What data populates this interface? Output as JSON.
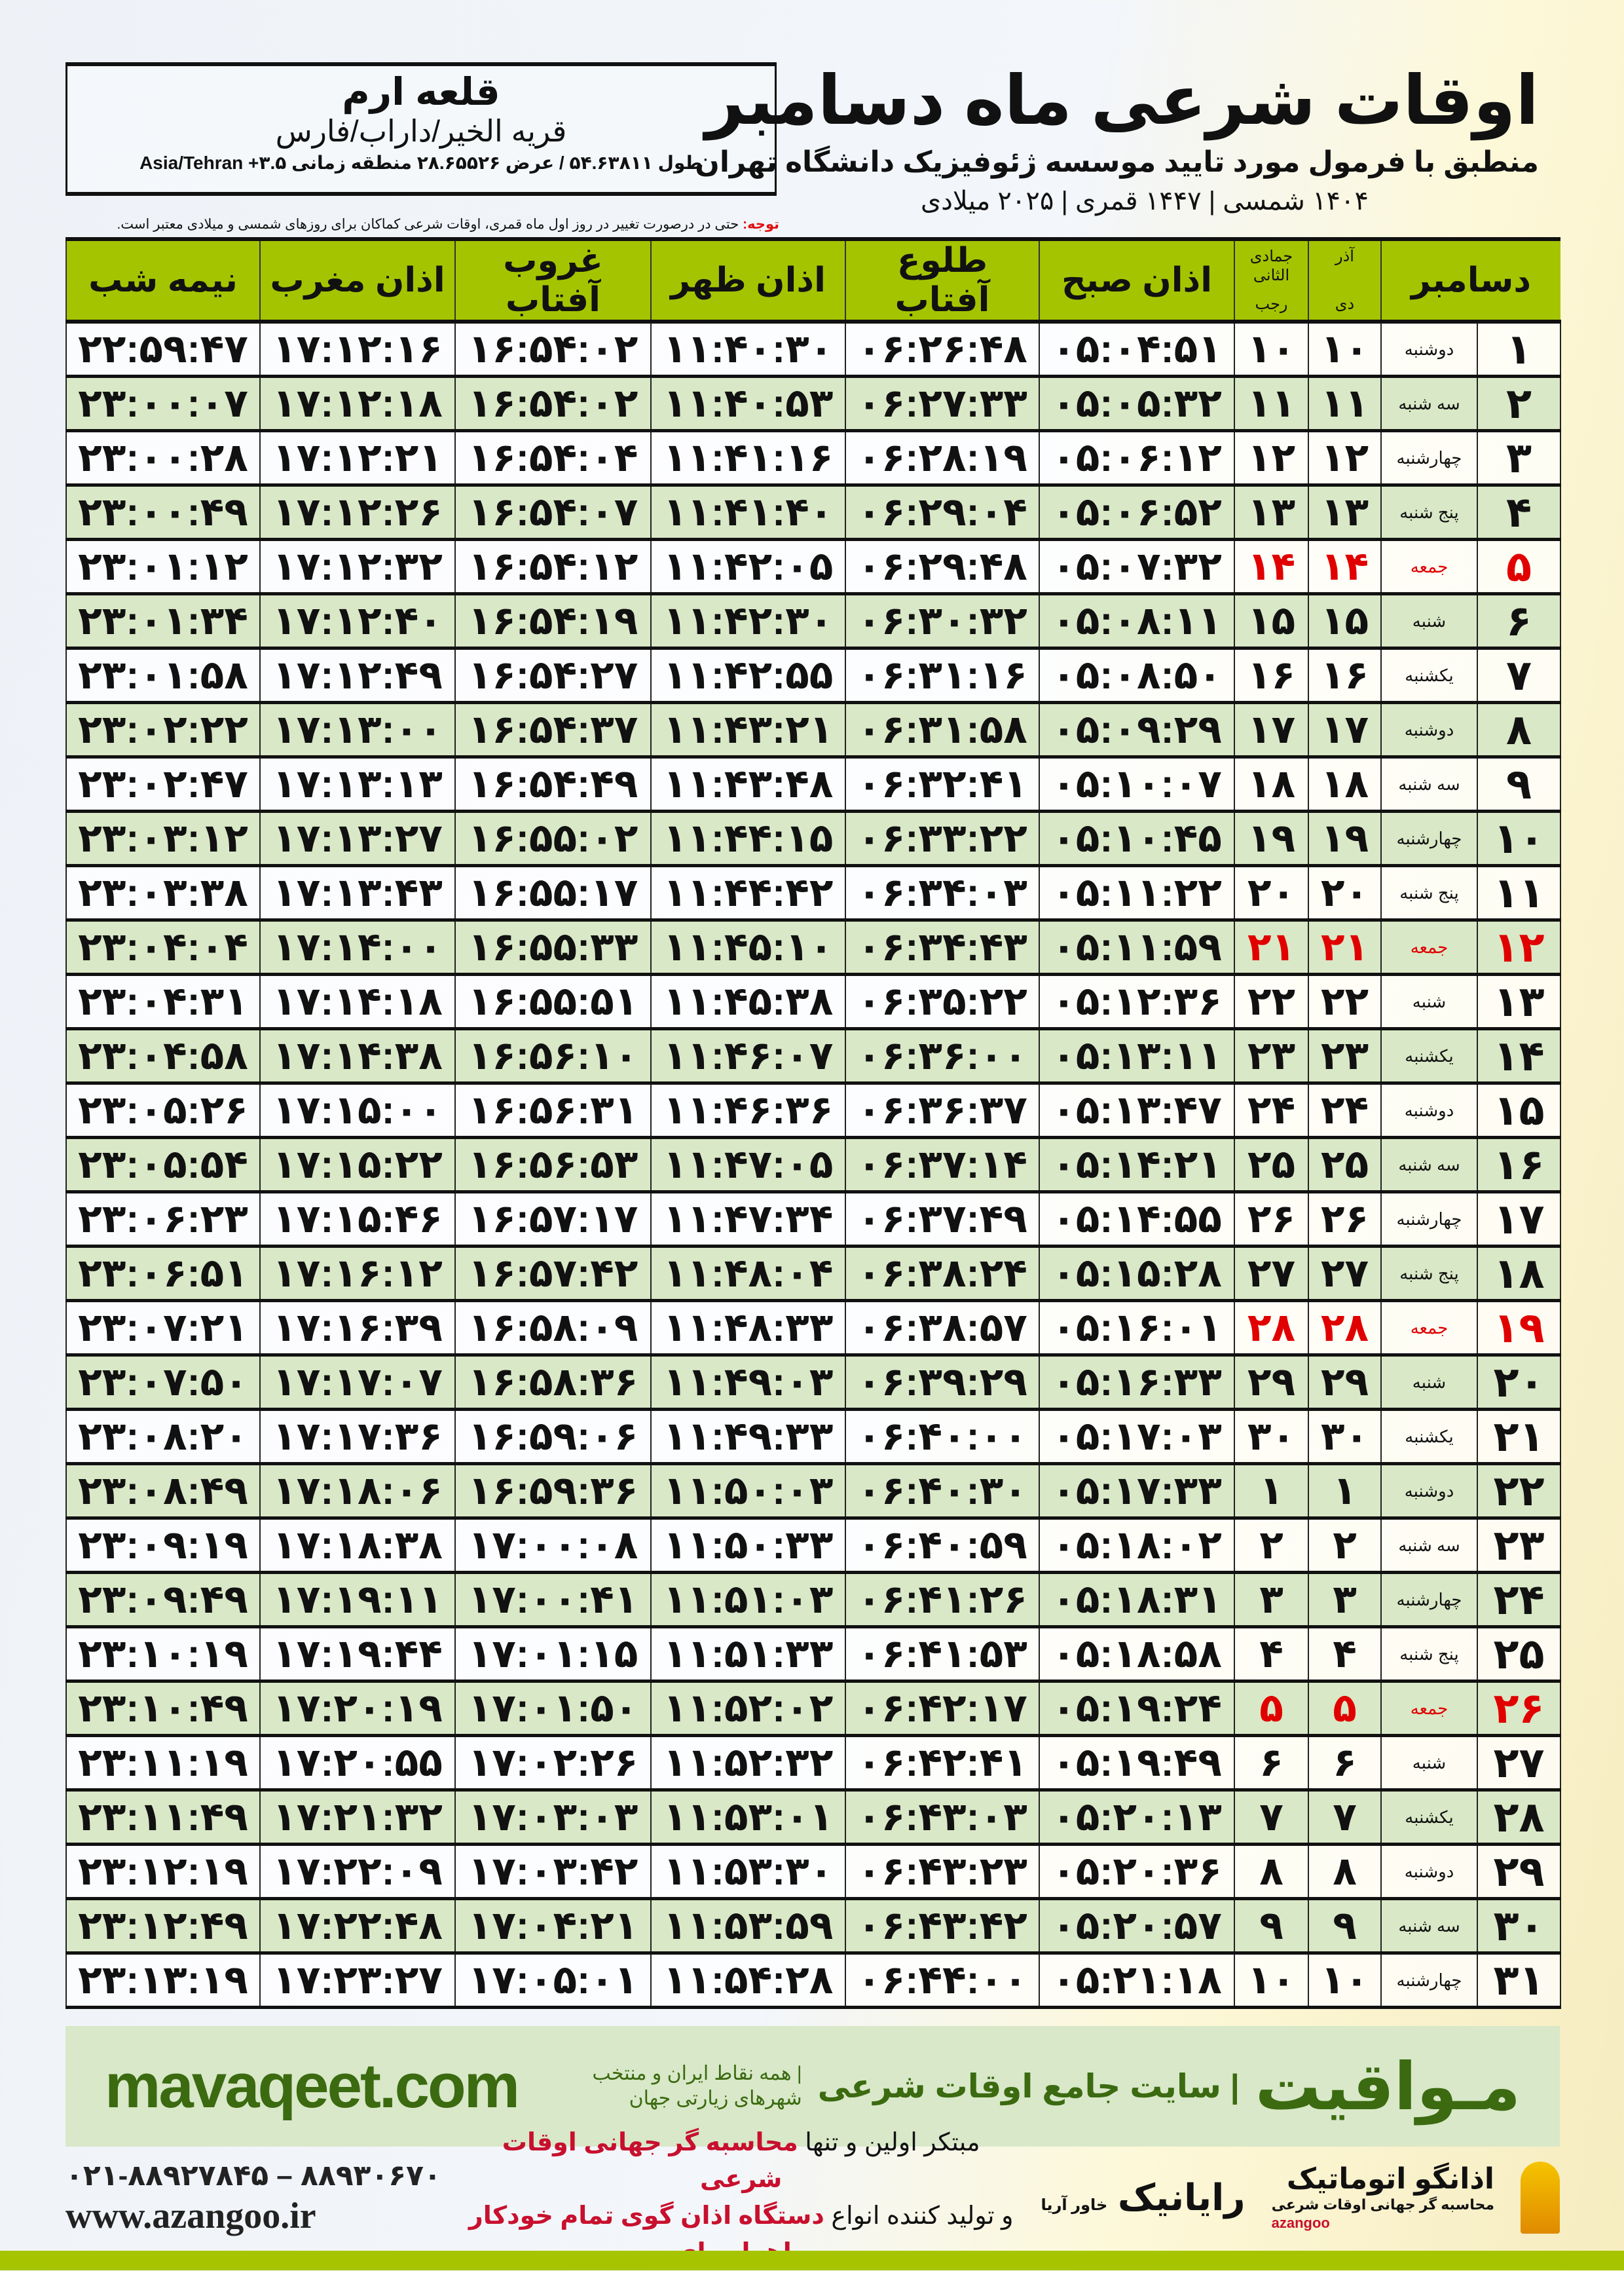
{
  "location": {
    "name": "قلعه ارم",
    "region": "قریه الخیر/داراب/فارس",
    "coords": "طول ۵۴.۶۳۸۱۱ / عرض ۲۸.۶۵۵۲۶ منطقه زمانی ۳.۵+ Asia/Tehran"
  },
  "header": {
    "title": "اوقات شرعی ماه دسامبر",
    "subtitle": "منطبق با فرمول مورد تایید موسسه ژئوفیزیک دانشگاه تهران",
    "years": "۱۴۰۴ شمسی | ۱۴۴۷ قمری | ۲۰۲۵ میلادی"
  },
  "note": {
    "label": "توجه:",
    "text": " حتی در درصورت تغییر در روز اول ماه قمری، اوقات شرعی کماکان برای روزهای شمسی و میلادی معتبر است."
  },
  "colors": {
    "header_green": "#a5c400",
    "row_green": "#d9e8c6",
    "holiday_red": "#e00000",
    "brand_green": "#3b6a10"
  },
  "table": {
    "columns": {
      "month": "دسامبر",
      "shamsi_top": "آذر",
      "shamsi_bottom": "دی",
      "hijri_top": "جمادی الثانی",
      "hijri_bottom": "رجب",
      "fajr": "اذان صبح",
      "sunrise": "طلوع آفتاب",
      "dhuhr": "اذان ظهر",
      "sunset": "غروب آفتاب",
      "maghrib": "اذان مغرب",
      "midnight": "نیمه شب"
    },
    "rows": [
      [
        "۱",
        "دوشنبه",
        "۱۰",
        "۱۰",
        "۰۵:۰۴:۵۱",
        "۰۶:۲۶:۴۸",
        "۱۱:۴۰:۳۰",
        "۱۶:۵۴:۰۲",
        "۱۷:۱۲:۱۶",
        "۲۲:۵۹:۴۷",
        false
      ],
      [
        "۲",
        "سه شنبه",
        "۱۱",
        "۱۱",
        "۰۵:۰۵:۳۲",
        "۰۶:۲۷:۳۳",
        "۱۱:۴۰:۵۳",
        "۱۶:۵۴:۰۲",
        "۱۷:۱۲:۱۸",
        "۲۳:۰۰:۰۷",
        false
      ],
      [
        "۳",
        "چهارشنبه",
        "۱۲",
        "۱۲",
        "۰۵:۰۶:۱۲",
        "۰۶:۲۸:۱۹",
        "۱۱:۴۱:۱۶",
        "۱۶:۵۴:۰۴",
        "۱۷:۱۲:۲۱",
        "۲۳:۰۰:۲۸",
        false
      ],
      [
        "۴",
        "پنج شنبه",
        "۱۳",
        "۱۳",
        "۰۵:۰۶:۵۲",
        "۰۶:۲۹:۰۴",
        "۱۱:۴۱:۴۰",
        "۱۶:۵۴:۰۷",
        "۱۷:۱۲:۲۶",
        "۲۳:۰۰:۴۹",
        false
      ],
      [
        "۵",
        "جمعه",
        "۱۴",
        "۱۴",
        "۰۵:۰۷:۳۲",
        "۰۶:۲۹:۴۸",
        "۱۱:۴۲:۰۵",
        "۱۶:۵۴:۱۲",
        "۱۷:۱۲:۳۲",
        "۲۳:۰۱:۱۲",
        true
      ],
      [
        "۶",
        "شنبه",
        "۱۵",
        "۱۵",
        "۰۵:۰۸:۱۱",
        "۰۶:۳۰:۳۲",
        "۱۱:۴۲:۳۰",
        "۱۶:۵۴:۱۹",
        "۱۷:۱۲:۴۰",
        "۲۳:۰۱:۳۴",
        false
      ],
      [
        "۷",
        "یکشنبه",
        "۱۶",
        "۱۶",
        "۰۵:۰۸:۵۰",
        "۰۶:۳۱:۱۶",
        "۱۱:۴۲:۵۵",
        "۱۶:۵۴:۲۷",
        "۱۷:۱۲:۴۹",
        "۲۳:۰۱:۵۸",
        false
      ],
      [
        "۸",
        "دوشنبه",
        "۱۷",
        "۱۷",
        "۰۵:۰۹:۲۹",
        "۰۶:۳۱:۵۸",
        "۱۱:۴۳:۲۱",
        "۱۶:۵۴:۳۷",
        "۱۷:۱۳:۰۰",
        "۲۳:۰۲:۲۲",
        false
      ],
      [
        "۹",
        "سه شنبه",
        "۱۸",
        "۱۸",
        "۰۵:۱۰:۰۷",
        "۰۶:۳۲:۴۱",
        "۱۱:۴۳:۴۸",
        "۱۶:۵۴:۴۹",
        "۱۷:۱۳:۱۳",
        "۲۳:۰۲:۴۷",
        false
      ],
      [
        "۱۰",
        "چهارشنبه",
        "۱۹",
        "۱۹",
        "۰۵:۱۰:۴۵",
        "۰۶:۳۳:۲۲",
        "۱۱:۴۴:۱۵",
        "۱۶:۵۵:۰۲",
        "۱۷:۱۳:۲۷",
        "۲۳:۰۳:۱۲",
        false
      ],
      [
        "۱۱",
        "پنج شنبه",
        "۲۰",
        "۲۰",
        "۰۵:۱۱:۲۲",
        "۰۶:۳۴:۰۳",
        "۱۱:۴۴:۴۲",
        "۱۶:۵۵:۱۷",
        "۱۷:۱۳:۴۳",
        "۲۳:۰۳:۳۸",
        false
      ],
      [
        "۱۲",
        "جمعه",
        "۲۱",
        "۲۱",
        "۰۵:۱۱:۵۹",
        "۰۶:۳۴:۴۳",
        "۱۱:۴۵:۱۰",
        "۱۶:۵۵:۳۳",
        "۱۷:۱۴:۰۰",
        "۲۳:۰۴:۰۴",
        true
      ],
      [
        "۱۳",
        "شنبه",
        "۲۲",
        "۲۲",
        "۰۵:۱۲:۳۶",
        "۰۶:۳۵:۲۲",
        "۱۱:۴۵:۳۸",
        "۱۶:۵۵:۵۱",
        "۱۷:۱۴:۱۸",
        "۲۳:۰۴:۳۱",
        false
      ],
      [
        "۱۴",
        "یکشنبه",
        "۲۳",
        "۲۳",
        "۰۵:۱۳:۱۱",
        "۰۶:۳۶:۰۰",
        "۱۱:۴۶:۰۷",
        "۱۶:۵۶:۱۰",
        "۱۷:۱۴:۳۸",
        "۲۳:۰۴:۵۸",
        false
      ],
      [
        "۱۵",
        "دوشنبه",
        "۲۴",
        "۲۴",
        "۰۵:۱۳:۴۷",
        "۰۶:۳۶:۳۷",
        "۱۱:۴۶:۳۶",
        "۱۶:۵۶:۳۱",
        "۱۷:۱۵:۰۰",
        "۲۳:۰۵:۲۶",
        false
      ],
      [
        "۱۶",
        "سه شنبه",
        "۲۵",
        "۲۵",
        "۰۵:۱۴:۲۱",
        "۰۶:۳۷:۱۴",
        "۱۱:۴۷:۰۵",
        "۱۶:۵۶:۵۳",
        "۱۷:۱۵:۲۲",
        "۲۳:۰۵:۵۴",
        false
      ],
      [
        "۱۷",
        "چهارشنبه",
        "۲۶",
        "۲۶",
        "۰۵:۱۴:۵۵",
        "۰۶:۳۷:۴۹",
        "۱۱:۴۷:۳۴",
        "۱۶:۵۷:۱۷",
        "۱۷:۱۵:۴۶",
        "۲۳:۰۶:۲۳",
        false
      ],
      [
        "۱۸",
        "پنج شنبه",
        "۲۷",
        "۲۷",
        "۰۵:۱۵:۲۸",
        "۰۶:۳۸:۲۴",
        "۱۱:۴۸:۰۴",
        "۱۶:۵۷:۴۲",
        "۱۷:۱۶:۱۲",
        "۲۳:۰۶:۵۱",
        false
      ],
      [
        "۱۹",
        "جمعه",
        "۲۸",
        "۲۸",
        "۰۵:۱۶:۰۱",
        "۰۶:۳۸:۵۷",
        "۱۱:۴۸:۳۳",
        "۱۶:۵۸:۰۹",
        "۱۷:۱۶:۳۹",
        "۲۳:۰۷:۲۱",
        true
      ],
      [
        "۲۰",
        "شنبه",
        "۲۹",
        "۲۹",
        "۰۵:۱۶:۳۳",
        "۰۶:۳۹:۲۹",
        "۱۱:۴۹:۰۳",
        "۱۶:۵۸:۳۶",
        "۱۷:۱۷:۰۷",
        "۲۳:۰۷:۵۰",
        false
      ],
      [
        "۲۱",
        "یکشنبه",
        "۳۰",
        "۳۰",
        "۰۵:۱۷:۰۳",
        "۰۶:۴۰:۰۰",
        "۱۱:۴۹:۳۳",
        "۱۶:۵۹:۰۶",
        "۱۷:۱۷:۳۶",
        "۲۳:۰۸:۲۰",
        false
      ],
      [
        "۲۲",
        "دوشنبه",
        "۱",
        "۱",
        "۰۵:۱۷:۳۳",
        "۰۶:۴۰:۳۰",
        "۱۱:۵۰:۰۳",
        "۱۶:۵۹:۳۶",
        "۱۷:۱۸:۰۶",
        "۲۳:۰۸:۴۹",
        false
      ],
      [
        "۲۳",
        "سه شنبه",
        "۲",
        "۲",
        "۰۵:۱۸:۰۲",
        "۰۶:۴۰:۵۹",
        "۱۱:۵۰:۳۳",
        "۱۷:۰۰:۰۸",
        "۱۷:۱۸:۳۸",
        "۲۳:۰۹:۱۹",
        false
      ],
      [
        "۲۴",
        "چهارشنبه",
        "۳",
        "۳",
        "۰۵:۱۸:۳۱",
        "۰۶:۴۱:۲۶",
        "۱۱:۵۱:۰۳",
        "۱۷:۰۰:۴۱",
        "۱۷:۱۹:۱۱",
        "۲۳:۰۹:۴۹",
        false
      ],
      [
        "۲۵",
        "پنج شنبه",
        "۴",
        "۴",
        "۰۵:۱۸:۵۸",
        "۰۶:۴۱:۵۳",
        "۱۱:۵۱:۳۳",
        "۱۷:۰۱:۱۵",
        "۱۷:۱۹:۴۴",
        "۲۳:۱۰:۱۹",
        false
      ],
      [
        "۲۶",
        "جمعه",
        "۵",
        "۵",
        "۰۵:۱۹:۲۴",
        "۰۶:۴۲:۱۷",
        "۱۱:۵۲:۰۲",
        "۱۷:۰۱:۵۰",
        "۱۷:۲۰:۱۹",
        "۲۳:۱۰:۴۹",
        true
      ],
      [
        "۲۷",
        "شنبه",
        "۶",
        "۶",
        "۰۵:۱۹:۴۹",
        "۰۶:۴۲:۴۱",
        "۱۱:۵۲:۳۲",
        "۱۷:۰۲:۲۶",
        "۱۷:۲۰:۵۵",
        "۲۳:۱۱:۱۹",
        false
      ],
      [
        "۲۸",
        "یکشنبه",
        "۷",
        "۷",
        "۰۵:۲۰:۱۳",
        "۰۶:۴۳:۰۳",
        "۱۱:۵۳:۰۱",
        "۱۷:۰۳:۰۳",
        "۱۷:۲۱:۳۲",
        "۲۳:۱۱:۴۹",
        false
      ],
      [
        "۲۹",
        "دوشنبه",
        "۸",
        "۸",
        "۰۵:۲۰:۳۶",
        "۰۶:۴۳:۲۳",
        "۱۱:۵۳:۳۰",
        "۱۷:۰۳:۴۲",
        "۱۷:۲۲:۰۹",
        "۲۳:۱۲:۱۹",
        false
      ],
      [
        "۳۰",
        "سه شنبه",
        "۹",
        "۹",
        "۰۵:۲۰:۵۷",
        "۰۶:۴۳:۴۲",
        "۱۱:۵۳:۵۹",
        "۱۷:۰۴:۲۱",
        "۱۷:۲۲:۴۸",
        "۲۳:۱۲:۴۹",
        false
      ],
      [
        "۳۱",
        "چهارشنبه",
        "۱۰",
        "۱۰",
        "۰۵:۲۱:۱۸",
        "۰۶:۴۴:۰۰",
        "۱۱:۵۴:۲۸",
        "۱۷:۰۵:۰۱",
        "۱۷:۲۳:۲۷",
        "۲۳:۱۳:۱۹",
        false
      ]
    ]
  },
  "footer": {
    "brand": "مـواقیت",
    "tagline": "| سایت جامع اوقات شرعی",
    "sub": "| همه نقاط ایران و منتخب شهرهای زیارتی جهان",
    "url": "mavaqeet.com"
  },
  "ad": {
    "phone": "۰۲۱-۸۸۹۲۷۸۴۵ – ۸۸۹۳۰۶۷۰",
    "website": "www.azangoo.ir",
    "line1a": "مبتکر اولین و تنها ",
    "line1b": "محاسبه گر جهانی اوقات شرعی",
    "line2a": "و تولید کننده انواع ",
    "line2b": "دستگاه اذان گوی تمام خودکار ماهواره ای",
    "rayanik": "رایانیک",
    "rayanik_small": "خاور آریا",
    "azangoo": "اذانگو اتوماتیک",
    "azangoo_small": "محاسبه گر جهانی اوقات شرعی",
    "azangoo_latin": "azangoo"
  }
}
